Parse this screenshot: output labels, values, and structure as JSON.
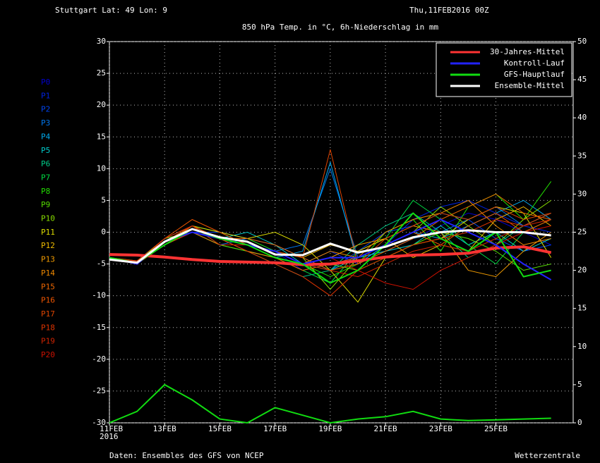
{
  "chart_data": {
    "type": "line",
    "location": "Stuttgart  Lat: 49 Lon: 9",
    "run": "Thu,11FEB2016 00Z",
    "title": "850 hPa Temp. in °C, 6h-Niederschlag in mm",
    "source": "Daten: Ensembles des GFS von NCEP",
    "brand": "Wetterzentrale",
    "x": [
      0,
      1,
      2,
      3,
      4,
      5,
      6,
      7,
      8,
      9,
      10,
      11,
      12,
      13,
      14,
      15,
      16
    ],
    "xlim": [
      0,
      16.8
    ],
    "xticks": [
      {
        "value": 0,
        "label": "11FEB"
      },
      {
        "value": 2,
        "label": "13FEB"
      },
      {
        "value": 4,
        "label": "15FEB"
      },
      {
        "value": 6,
        "label": "17FEB"
      },
      {
        "value": 8,
        "label": "19FEB"
      },
      {
        "value": 10,
        "label": "21FEB"
      },
      {
        "value": 12,
        "label": "23FEB"
      },
      {
        "value": 14,
        "label": "25FEB"
      }
    ],
    "year_label": "2016",
    "ylim": [
      -30,
      30
    ],
    "yticks": [
      -30,
      -25,
      -20,
      -15,
      -10,
      -5,
      0,
      5,
      10,
      15,
      20,
      25,
      30
    ],
    "y2lim": [
      0,
      50
    ],
    "y2ticks": [
      0,
      5,
      10,
      15,
      20,
      25,
      30,
      35,
      40,
      45,
      50
    ],
    "grid": true,
    "legend": "top-right",
    "series": [
      {
        "name": "30-Jahres-Mittel",
        "color": "#ff3333",
        "values": [
          -3.5,
          -3.6,
          -3.9,
          -4.3,
          -4.6,
          -4.7,
          -4.8,
          -5.1,
          -5.0,
          -4.5,
          -3.9,
          -3.6,
          -3.5,
          -3.3,
          -2.5,
          -2.3,
          -3.2
        ]
      },
      {
        "name": "Kontroll-Lauf",
        "color": "#2222ff",
        "values": [
          -4,
          -5,
          -1.5,
          0,
          -1,
          -2,
          -3,
          -5,
          -4,
          -4,
          -2,
          0,
          2,
          0,
          -2,
          -5,
          -7.5
        ]
      },
      {
        "name": "GFS-Hauptlauf",
        "color": "#11dd11",
        "values": [
          -4,
          -4.8,
          -2,
          0.5,
          -1,
          -2,
          -4,
          -5,
          -8,
          -6,
          -2,
          3,
          -1,
          -3,
          0,
          -7,
          -6
        ],
        "precip_values": [
          0,
          1.5,
          5,
          3,
          0.5,
          0,
          2,
          1,
          0,
          0.5,
          0.8,
          1.5,
          0.5,
          0.3,
          0.4,
          0.5,
          0.6
        ]
      },
      {
        "name": "Ensemble-Mittel",
        "color": "#ffffff",
        "values": [
          -4.3,
          -4.8,
          -1.5,
          0.5,
          -0.8,
          -1.5,
          -3.5,
          -3.6,
          -1.8,
          -3.2,
          -2.3,
          -0.8,
          0,
          0.3,
          0,
          0,
          -0.5
        ]
      }
    ],
    "members": [
      {
        "name": "P0",
        "color": "#0000cc",
        "values": [
          -4,
          -4.5,
          -1,
          0,
          -1,
          -2,
          -3,
          -6,
          -5,
          -4,
          -3,
          -1,
          1,
          3,
          2,
          0,
          -2
        ]
      },
      {
        "name": "P1",
        "color": "#0022dd",
        "values": [
          -4,
          -5,
          -2,
          1,
          -1,
          -3,
          -4,
          -5,
          -3,
          -5,
          -2,
          2,
          4,
          5,
          3,
          1,
          0
        ]
      },
      {
        "name": "P2",
        "color": "#0044ee",
        "values": [
          -4,
          -4.8,
          -1.5,
          0,
          0,
          -1,
          -2,
          -4,
          -6,
          -3,
          0,
          1,
          3,
          2,
          -1,
          -3,
          -2
        ]
      },
      {
        "name": "P3",
        "color": "#0077ee",
        "values": [
          -4,
          -5,
          -1,
          1,
          -2,
          -1,
          -3,
          -2,
          10,
          -4,
          -3,
          -1,
          0,
          2,
          4,
          1,
          3
        ]
      },
      {
        "name": "P4",
        "color": "#00aaee",
        "values": [
          -4,
          -4.6,
          -2,
          0,
          -1,
          -2,
          -4,
          -3,
          11,
          -5,
          -2,
          0,
          -1,
          1,
          3,
          5,
          2
        ]
      },
      {
        "name": "P5",
        "color": "#00cccc",
        "values": [
          -4,
          -5,
          -1.5,
          1,
          -1,
          0,
          -2,
          -5,
          -6,
          -4,
          -3,
          -2,
          1,
          -2,
          0,
          -3,
          -1
        ]
      },
      {
        "name": "P6",
        "color": "#00cc88",
        "values": [
          -4,
          -4.7,
          -1,
          0,
          -2,
          -3,
          -5,
          -7,
          -6,
          -2,
          1,
          3,
          0,
          -4,
          -2,
          1,
          3
        ]
      },
      {
        "name": "P7",
        "color": "#00dd44",
        "values": [
          -4,
          -5,
          -2,
          1,
          0,
          -2,
          -4,
          -6,
          -8,
          -3,
          -1,
          5,
          2,
          -2,
          -5,
          0,
          2
        ]
      },
      {
        "name": "P8",
        "color": "#22dd00",
        "values": [
          -4,
          -4.5,
          -1.5,
          0,
          -1,
          -1,
          -3,
          -5,
          -7,
          -5,
          0,
          2,
          -3,
          4,
          6,
          2,
          8
        ]
      },
      {
        "name": "P9",
        "color": "#55dd00",
        "values": [
          -4,
          -5,
          -2,
          1,
          -2,
          -3,
          -4,
          -6,
          -5,
          -6,
          -4,
          -2,
          0,
          -1,
          -3,
          -6,
          -5
        ]
      },
      {
        "name": "P10",
        "color": "#88dd00",
        "values": [
          -4,
          -4.8,
          -1,
          0,
          -1,
          -2,
          -3,
          -4,
          -9,
          -4,
          -2,
          0,
          4,
          1,
          -2,
          2,
          5
        ]
      },
      {
        "name": "P11",
        "color": "#dddd00",
        "values": [
          -4,
          -5,
          -1.5,
          1,
          0,
          -1,
          0,
          -2,
          -6,
          -11,
          -4,
          -2,
          -1,
          2,
          4,
          3,
          -4
        ]
      },
      {
        "name": "P12",
        "color": "#eebb00",
        "values": [
          -4,
          -4.6,
          -2,
          0,
          -1,
          -2,
          -3,
          -4,
          -2,
          -3,
          -1,
          -4,
          -2,
          -3,
          2,
          4,
          1
        ]
      },
      {
        "name": "P13",
        "color": "#ee9900",
        "values": [
          -4,
          -5,
          -1,
          1,
          -1,
          -3,
          -4,
          -5,
          -4,
          -2,
          -1,
          1,
          0,
          -6,
          -7,
          -3,
          0
        ]
      },
      {
        "name": "P14",
        "color": "#ee8800",
        "values": [
          -4,
          -4.7,
          -1.5,
          0,
          -2,
          -2,
          -3,
          -5,
          -3,
          -4,
          0,
          2,
          3,
          5,
          1,
          -2,
          -1
        ]
      },
      {
        "name": "P15",
        "color": "#ee6600",
        "values": [
          -4,
          -5,
          -2,
          1,
          -1,
          -1,
          -2,
          -4,
          -6,
          -5,
          -3,
          -1,
          2,
          4,
          6,
          3,
          2
        ]
      },
      {
        "name": "P16",
        "color": "#ee5500",
        "values": [
          -4,
          -4.5,
          -1,
          2,
          0,
          -2,
          -4,
          -6,
          -5,
          -4,
          -2,
          0,
          -2,
          1,
          3,
          0,
          2
        ]
      },
      {
        "name": "P17",
        "color": "#dd4400",
        "values": [
          -4,
          -5,
          -1.5,
          1,
          -1,
          -2,
          -3,
          -4,
          13,
          -5,
          -1,
          1,
          3,
          2,
          4,
          2,
          3
        ]
      },
      {
        "name": "P18",
        "color": "#dd3300",
        "values": [
          -4,
          -4.8,
          -2,
          0,
          -1,
          -3,
          -5,
          -7,
          -10,
          -6,
          -4,
          -2,
          -1,
          0,
          2,
          1,
          3
        ]
      },
      {
        "name": "P19",
        "color": "#cc2200",
        "values": [
          -4,
          -5,
          -1,
          1,
          -2,
          -2,
          -4,
          -5,
          -6,
          -7,
          -5,
          -3,
          -2,
          -3,
          -1,
          1,
          2
        ]
      },
      {
        "name": "P20",
        "color": "#cc1100",
        "values": [
          -4,
          -4.6,
          -1.5,
          0,
          -1,
          -2,
          -3,
          -5,
          -4,
          -6,
          -8,
          -9,
          -6,
          -4,
          -2,
          0,
          1
        ]
      }
    ]
  }
}
